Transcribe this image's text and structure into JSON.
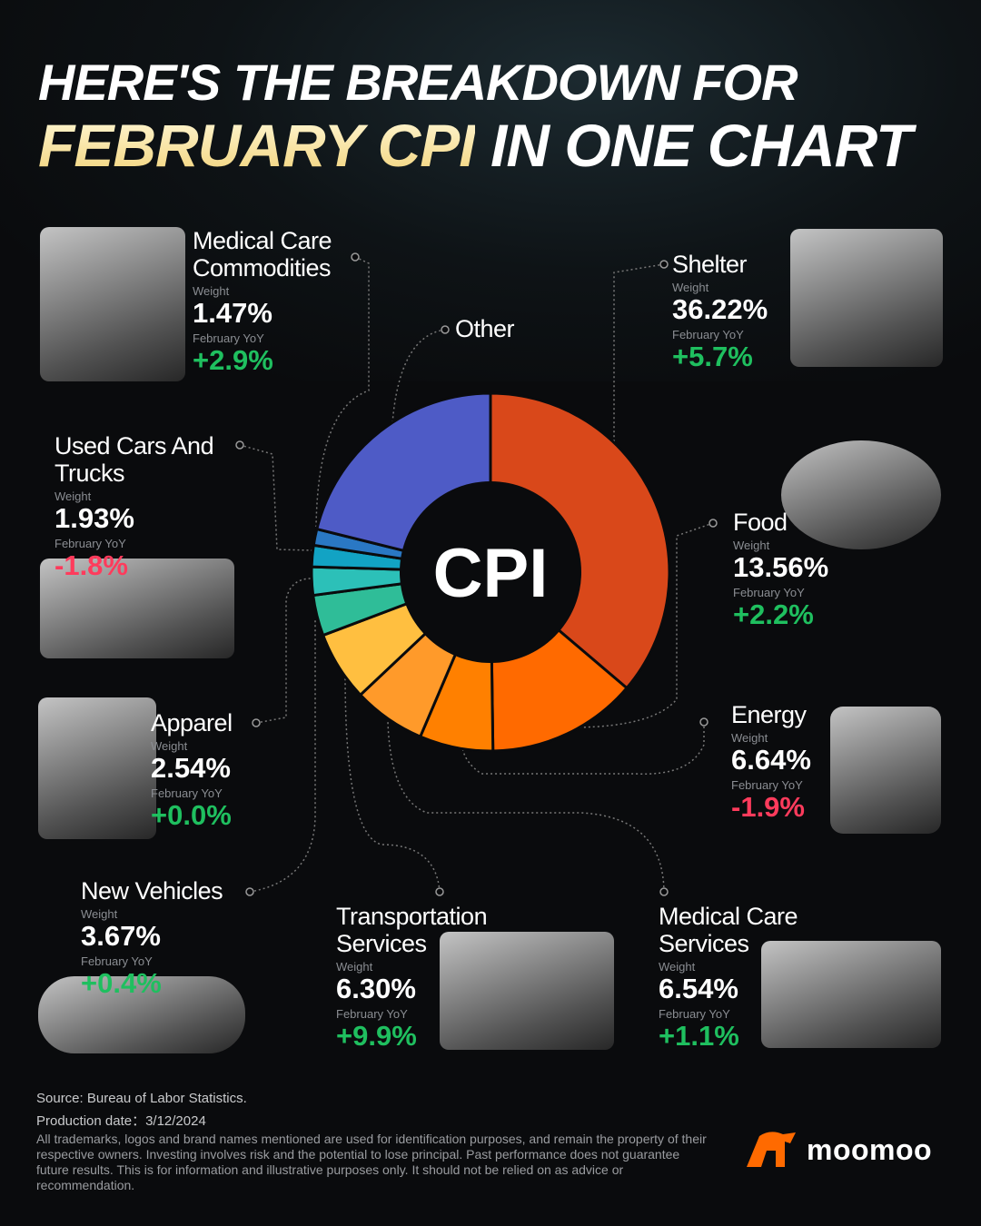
{
  "header": {
    "line1": "HERE'S THE BREAKDOWN FOR",
    "line2_highlight": "FEBRUARY CPI",
    "line2_rest": " IN ONE CHART"
  },
  "labels": {
    "weight": "Weight",
    "yoy": "February YoY"
  },
  "colors": {
    "positive": "#1fbf5f",
    "negative": "#ff3b5c",
    "brand": "#ff6a00"
  },
  "chart_data": {
    "type": "pie",
    "style": "donut",
    "center_label": "CPI",
    "start": "top, clockwise",
    "series": [
      {
        "name": "Shelter",
        "weight": 36.22,
        "yoy": "+5.7%",
        "color": "#d9481a"
      },
      {
        "name": "Food",
        "weight": 13.56,
        "yoy": "+2.2%",
        "color": "#ff6a00"
      },
      {
        "name": "Energy",
        "weight": 6.64,
        "yoy": "-1.9%",
        "color": "#ff8000"
      },
      {
        "name": "Medical Care Services",
        "weight": 6.54,
        "yoy": "+1.1%",
        "color": "#ff9a2a"
      },
      {
        "name": "Transportation Services",
        "weight": 6.3,
        "yoy": "+9.9%",
        "color": "#ffbf40"
      },
      {
        "name": "New Vehicles",
        "weight": 3.67,
        "yoy": "+0.4%",
        "color": "#2fbd98"
      },
      {
        "name": "Apparel",
        "weight": 2.54,
        "yoy": "+0.0%",
        "color": "#2cc0b8"
      },
      {
        "name": "Used Cars And Trucks",
        "weight": 1.93,
        "yoy": "-1.8%",
        "color": "#12a3c4"
      },
      {
        "name": "Medical Care Commodities",
        "weight": 1.47,
        "yoy": "+2.9%",
        "color": "#2a78c4"
      },
      {
        "name": "Other",
        "weight": 21.13,
        "color": "#4e5bc6"
      }
    ]
  },
  "items": [
    {
      "name": "Medical Care Commodities",
      "weight": "1.47%",
      "yoy": "+2.9%",
      "sign": "pos"
    },
    {
      "name": "Shelter",
      "weight": "36.22%",
      "yoy": "+5.7%",
      "sign": "pos"
    },
    {
      "name": "Other"
    },
    {
      "name": "Used Cars And Trucks",
      "weight": "1.93%",
      "yoy": "-1.8%",
      "sign": "neg"
    },
    {
      "name": "Food",
      "weight": "13.56%",
      "yoy": "+2.2%",
      "sign": "pos"
    },
    {
      "name": "Apparel",
      "weight": "2.54%",
      "yoy": "+0.0%",
      "sign": "pos"
    },
    {
      "name": "Energy",
      "weight": "6.64%",
      "yoy": "-1.9%",
      "sign": "neg"
    },
    {
      "name": "New Vehicles",
      "weight": "3.67%",
      "yoy": "+0.4%",
      "sign": "pos"
    },
    {
      "name": "Transportation Services",
      "weight": "6.30%",
      "yoy": "+9.9%",
      "sign": "pos"
    },
    {
      "name": "Medical Care Services",
      "weight": "6.54%",
      "yoy": "+1.1%",
      "sign": "pos"
    }
  ],
  "footer": {
    "source": "Source: Bureau of Labor Statistics.",
    "production": "Production date：3/12/2024",
    "disclaimer": "All trademarks, logos and brand names mentioned are used for identification purposes, and remain the property of their respective owners. Investing involves risk and the potential to lose principal. Past performance does not guarantee future results. This is for information and illustrative purposes only. It should not be relied on as advice or recommendation.",
    "brand": "moomoo"
  }
}
